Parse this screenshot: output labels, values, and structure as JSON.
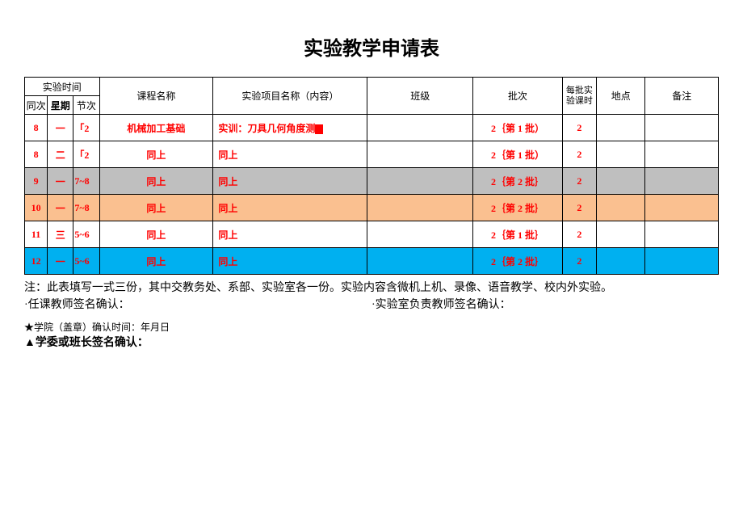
{
  "title": "实验教学申请表",
  "headers": {
    "time_group": "实验时间",
    "zc": "同次",
    "xq": "星期",
    "jc": "节次",
    "kc": "课程名称",
    "xm": "实验项目名称（内容）",
    "bj": "班级",
    "pc": "批次",
    "mk": "每批实验课时",
    "dd": "地点",
    "bz": "备注"
  },
  "rows": [
    {
      "zc": "8",
      "xq": "一",
      "jc": "「2",
      "kc": "机械加工基础",
      "xm_prefix": "实训：刀具几何角度测",
      "xm_cursor": true,
      "bj": "",
      "pc": "2｛第 1 批）",
      "mk": "2",
      "dd": "",
      "bz": "",
      "bg": "#ffffff"
    },
    {
      "zc": "8",
      "xq": "二",
      "jc": "「2",
      "kc": "同上",
      "xm_prefix": "同上",
      "xm_cursor": false,
      "bj": "",
      "pc": "2｛第 1 批）",
      "mk": "2",
      "dd": "",
      "bz": "",
      "bg": "#ffffff"
    },
    {
      "zc": "9",
      "xq": "一",
      "jc": "7~8",
      "kc": "同上",
      "xm_prefix": "同上",
      "xm_cursor": false,
      "bj": "",
      "pc": "2｛第 2 批｝",
      "mk": "2",
      "dd": "",
      "bz": "",
      "bg": "#bfbfbf"
    },
    {
      "zc": "10",
      "xq": "一",
      "jc": "7~8",
      "kc": "同上",
      "xm_prefix": "同上",
      "xm_cursor": false,
      "bj": "",
      "pc": "2｛第 2 批｝",
      "mk": "2",
      "dd": "",
      "bz": "",
      "bg": "#fac090"
    },
    {
      "zc": "11",
      "xq": "三",
      "jc": "5~6",
      "kc": "同上",
      "xm_prefix": "同上",
      "xm_cursor": false,
      "bj": "",
      "pc": "2｛第 1 批｝",
      "mk": "2",
      "dd": "",
      "bz": "",
      "bg": "#ffffff"
    },
    {
      "zc": "12",
      "xq": "一",
      "jc": "5~6",
      "kc": "同上",
      "xm_prefix": "同上",
      "xm_cursor": false,
      "bj": "",
      "pc": "2｛第 2 批｝",
      "mk": "2",
      "dd": "",
      "bz": "",
      "bg": "#00b0f0"
    }
  ],
  "notes": {
    "line1": "注：此表填写一式三份，其中交教务处、系部、实验室各一份。实验内容含微机上机、录像、语音教学、校内外实验。",
    "line2_left": "·任课教师签名确认：",
    "line2_right": "·实验室负责教师签名确认：",
    "line3": "★学院（盖章）确认时间：年月日",
    "line4": "▲学委或班长签名确认："
  }
}
